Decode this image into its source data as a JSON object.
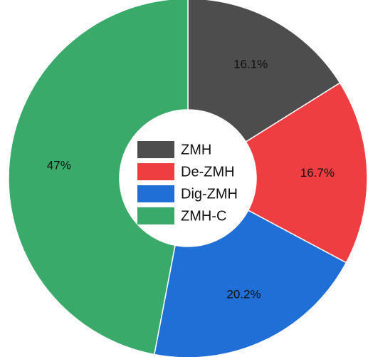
{
  "chart_data": {
    "type": "donut",
    "categories": [
      "ZMH",
      "De-ZMH",
      "Dig-ZMH",
      "ZMH-C"
    ],
    "values": [
      16.1,
      16.7,
      20.2,
      47
    ],
    "value_labels": [
      "16.1%",
      "16.7%",
      "20.2%",
      "47%"
    ],
    "colors": [
      "#4d4d4d",
      "#ef3e42",
      "#1f6fd6",
      "#3aaa6a"
    ]
  }
}
